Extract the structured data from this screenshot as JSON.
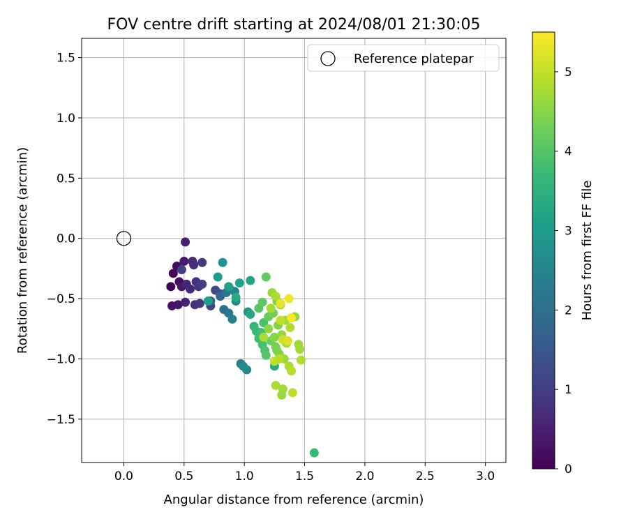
{
  "chart_data": {
    "type": "scatter",
    "title": "FOV centre drift starting at 2024/08/01 21:30:05",
    "xlabel": "Angular distance from reference (arcmin)",
    "ylabel": "Rotation from reference (arcmin)",
    "xlim": [
      -0.35,
      3.17
    ],
    "ylim": [
      -1.86,
      1.66
    ],
    "xticks": [
      0.0,
      0.5,
      1.0,
      1.5,
      2.0,
      2.5,
      3.0
    ],
    "xtick_labels": [
      "0.0",
      "0.5",
      "1.0",
      "1.5",
      "2.0",
      "2.5",
      "3.0"
    ],
    "yticks": [
      1.5,
      1.0,
      0.5,
      0.0,
      -0.5,
      -1.0,
      -1.5
    ],
    "ytick_labels": [
      "1.5",
      "1.0",
      "0.5",
      "0.0",
      "−0.5",
      "−1.0",
      "−1.5"
    ],
    "grid": true,
    "legend": {
      "placement": "top-right",
      "entries": [
        {
          "label": "Reference platepar",
          "marker": "open-circle"
        }
      ]
    },
    "reference_point": {
      "x": 0.0,
      "y": 0.0
    },
    "colorbar": {
      "label": "Hours from first FF file",
      "colormap": "viridis",
      "range": [
        0,
        5.5
      ],
      "ticks": [
        0,
        1,
        2,
        3,
        4,
        5
      ],
      "tick_labels": [
        "0",
        "1",
        "2",
        "3",
        "4",
        "5"
      ]
    },
    "points": [
      {
        "x": 0.39,
        "y": -0.4,
        "t": 0.05
      },
      {
        "x": 0.41,
        "y": -0.29,
        "t": 0.1
      },
      {
        "x": 0.44,
        "y": -0.23,
        "t": 0.15
      },
      {
        "x": 0.46,
        "y": -0.36,
        "t": 0.2
      },
      {
        "x": 0.4,
        "y": -0.56,
        "t": 0.25
      },
      {
        "x": 0.45,
        "y": -0.55,
        "t": 0.3
      },
      {
        "x": 0.48,
        "y": -0.4,
        "t": 0.35
      },
      {
        "x": 0.5,
        "y": -0.19,
        "t": 0.4
      },
      {
        "x": 0.51,
        "y": -0.03,
        "t": 0.45
      },
      {
        "x": 0.51,
        "y": -0.53,
        "t": 0.5
      },
      {
        "x": 0.52,
        "y": -0.38,
        "t": 0.55
      },
      {
        "x": 0.55,
        "y": -0.42,
        "t": 0.6
      },
      {
        "x": 0.57,
        "y": -0.19,
        "t": 0.65
      },
      {
        "x": 0.58,
        "y": -0.22,
        "t": 0.7
      },
      {
        "x": 0.59,
        "y": -0.55,
        "t": 0.75
      },
      {
        "x": 0.6,
        "y": -0.36,
        "t": 0.8
      },
      {
        "x": 0.62,
        "y": -0.4,
        "t": 0.85
      },
      {
        "x": 0.63,
        "y": -0.54,
        "t": 0.9
      },
      {
        "x": 0.65,
        "y": -0.2,
        "t": 0.95
      },
      {
        "x": 0.65,
        "y": -0.38,
        "t": 1.0
      },
      {
        "x": 0.48,
        "y": -0.26,
        "t": 1.05
      },
      {
        "x": 0.72,
        "y": -0.56,
        "t": 1.1
      },
      {
        "x": 0.76,
        "y": -0.43,
        "t": 1.2
      },
      {
        "x": 0.8,
        "y": -0.46,
        "t": 1.3
      },
      {
        "x": 0.72,
        "y": -0.52,
        "t": 1.6
      },
      {
        "x": 0.8,
        "y": -0.48,
        "t": 1.8
      },
      {
        "x": 0.83,
        "y": -0.59,
        "t": 2.0
      },
      {
        "x": 0.85,
        "y": -0.45,
        "t": 2.1
      },
      {
        "x": 0.87,
        "y": -0.62,
        "t": 2.2
      },
      {
        "x": 0.88,
        "y": -0.42,
        "t": 2.3
      },
      {
        "x": 0.9,
        "y": -0.67,
        "t": 2.4
      },
      {
        "x": 0.92,
        "y": -0.44,
        "t": 2.5
      },
      {
        "x": 0.93,
        "y": -0.52,
        "t": 2.6
      },
      {
        "x": 0.97,
        "y": -1.04,
        "t": 2.55
      },
      {
        "x": 0.99,
        "y": -1.06,
        "t": 2.6
      },
      {
        "x": 1.02,
        "y": -1.09,
        "t": 2.65
      },
      {
        "x": 1.03,
        "y": -0.61,
        "t": 2.75
      },
      {
        "x": 0.82,
        "y": -0.2,
        "t": 2.85
      },
      {
        "x": 0.78,
        "y": -0.32,
        "t": 3.0
      },
      {
        "x": 0.7,
        "y": -0.52,
        "t": 3.05
      },
      {
        "x": 0.87,
        "y": -0.4,
        "t": 3.1
      },
      {
        "x": 0.96,
        "y": -0.37,
        "t": 3.15
      },
      {
        "x": 1.05,
        "y": -0.35,
        "t": 3.2
      },
      {
        "x": 1.05,
        "y": -0.63,
        "t": 3.25
      },
      {
        "x": 0.93,
        "y": -0.49,
        "t": 3.3
      },
      {
        "x": 1.25,
        "y": -1.06,
        "t": 3.4
      },
      {
        "x": 1.58,
        "y": -1.78,
        "t": 3.7
      },
      {
        "x": 1.08,
        "y": -0.73,
        "t": 3.6
      },
      {
        "x": 1.1,
        "y": -0.77,
        "t": 3.7
      },
      {
        "x": 1.12,
        "y": -0.83,
        "t": 3.75
      },
      {
        "x": 1.14,
        "y": -0.78,
        "t": 3.8
      },
      {
        "x": 1.15,
        "y": -0.88,
        "t": 3.85
      },
      {
        "x": 1.16,
        "y": -0.7,
        "t": 3.9
      },
      {
        "x": 1.17,
        "y": -0.93,
        "t": 3.95
      },
      {
        "x": 1.18,
        "y": -0.97,
        "t": 4.0
      },
      {
        "x": 1.12,
        "y": -0.58,
        "t": 4.05
      },
      {
        "x": 1.15,
        "y": -0.53,
        "t": 4.1
      },
      {
        "x": 1.18,
        "y": -0.32,
        "t": 4.15
      },
      {
        "x": 1.2,
        "y": -0.65,
        "t": 4.2
      },
      {
        "x": 1.22,
        "y": -0.85,
        "t": 4.25
      },
      {
        "x": 1.24,
        "y": -0.62,
        "t": 4.3
      },
      {
        "x": 1.26,
        "y": -0.9,
        "t": 4.35
      },
      {
        "x": 1.27,
        "y": -0.52,
        "t": 4.4
      },
      {
        "x": 1.28,
        "y": -0.72,
        "t": 4.45
      },
      {
        "x": 1.29,
        "y": -0.96,
        "t": 4.5
      },
      {
        "x": 1.3,
        "y": -0.55,
        "t": 4.55
      },
      {
        "x": 1.31,
        "y": -0.8,
        "t": 4.6
      },
      {
        "x": 1.33,
        "y": -1.0,
        "t": 4.65
      },
      {
        "x": 1.34,
        "y": -0.68,
        "t": 4.7
      },
      {
        "x": 1.35,
        "y": -0.87,
        "t": 4.75
      },
      {
        "x": 1.37,
        "y": -1.06,
        "t": 4.8
      },
      {
        "x": 1.38,
        "y": -0.74,
        "t": 4.85
      },
      {
        "x": 1.39,
        "y": -1.1,
        "t": 4.9
      },
      {
        "x": 1.4,
        "y": -1.28,
        "t": 4.95
      },
      {
        "x": 1.42,
        "y": -0.65,
        "t": 4.6
      },
      {
        "x": 1.45,
        "y": -0.88,
        "t": 4.7
      },
      {
        "x": 1.46,
        "y": -0.92,
        "t": 4.75
      },
      {
        "x": 1.47,
        "y": -1.01,
        "t": 4.85
      },
      {
        "x": 1.26,
        "y": -1.22,
        "t": 4.8
      },
      {
        "x": 1.32,
        "y": -1.25,
        "t": 4.75
      },
      {
        "x": 1.31,
        "y": -1.3,
        "t": 4.65
      },
      {
        "x": 1.23,
        "y": -0.45,
        "t": 4.65
      },
      {
        "x": 1.22,
        "y": -0.58,
        "t": 4.75
      },
      {
        "x": 1.26,
        "y": -0.48,
        "t": 4.8
      },
      {
        "x": 1.2,
        "y": -0.75,
        "t": 4.55
      },
      {
        "x": 1.25,
        "y": -0.82,
        "t": 4.5
      },
      {
        "x": 1.27,
        "y": -0.93,
        "t": 4.4
      },
      {
        "x": 1.29,
        "y": -1.0,
        "t": 4.9
      },
      {
        "x": 1.25,
        "y": -1.02,
        "t": 4.95
      },
      {
        "x": 1.16,
        "y": -0.82,
        "t": 4.8
      },
      {
        "x": 1.3,
        "y": -0.68,
        "t": 5.0
      },
      {
        "x": 1.32,
        "y": -0.84,
        "t": 5.1
      },
      {
        "x": 1.36,
        "y": -0.85,
        "t": 5.2
      },
      {
        "x": 1.3,
        "y": -0.54,
        "t": 5.3
      },
      {
        "x": 1.37,
        "y": -0.5,
        "t": 5.4
      },
      {
        "x": 1.39,
        "y": -0.66,
        "t": 5.45
      }
    ]
  }
}
